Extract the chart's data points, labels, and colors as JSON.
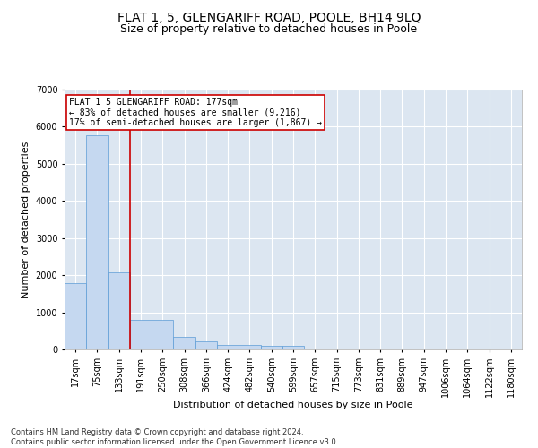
{
  "title": "FLAT 1, 5, GLENGARIFF ROAD, POOLE, BH14 9LQ",
  "subtitle": "Size of property relative to detached houses in Poole",
  "xlabel": "Distribution of detached houses by size in Poole",
  "ylabel": "Number of detached properties",
  "footer_line1": "Contains HM Land Registry data © Crown copyright and database right 2024.",
  "footer_line2": "Contains public sector information licensed under the Open Government Licence v3.0.",
  "bin_labels": [
    "17sqm",
    "75sqm",
    "133sqm",
    "191sqm",
    "250sqm",
    "308sqm",
    "366sqm",
    "424sqm",
    "482sqm",
    "540sqm",
    "599sqm",
    "657sqm",
    "715sqm",
    "773sqm",
    "831sqm",
    "889sqm",
    "947sqm",
    "1006sqm",
    "1064sqm",
    "1122sqm",
    "1180sqm"
  ],
  "bar_heights": [
    1780,
    5780,
    2080,
    800,
    800,
    350,
    210,
    130,
    110,
    105,
    85,
    0,
    0,
    0,
    0,
    0,
    0,
    0,
    0,
    0,
    0
  ],
  "bar_color": "#c5d8f0",
  "bar_edge_color": "#5b9bd5",
  "red_line_bin": 2,
  "annotation_text": "FLAT 1 5 GLENGARIFF ROAD: 177sqm\n← 83% of detached houses are smaller (9,216)\n17% of semi-detached houses are larger (1,867) →",
  "annotation_box_color": "#ffffff",
  "annotation_box_edge": "#cc0000",
  "ylim": [
    0,
    7000
  ],
  "yticks": [
    0,
    1000,
    2000,
    3000,
    4000,
    5000,
    6000,
    7000
  ],
  "plot_bg_color": "#dce6f1",
  "grid_color": "#ffffff",
  "title_fontsize": 10,
  "subtitle_fontsize": 9,
  "axis_label_fontsize": 8,
  "tick_fontsize": 7,
  "footer_fontsize": 6,
  "annotation_fontsize": 7
}
